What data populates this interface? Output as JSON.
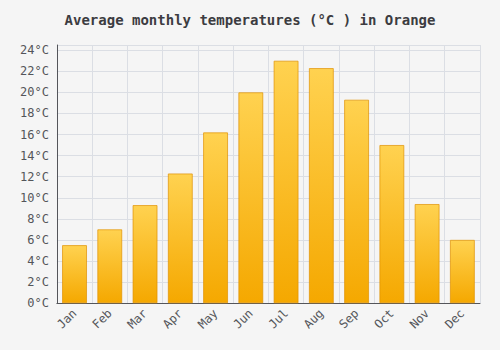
{
  "chart_data": {
    "type": "bar",
    "title": "Average monthly temperatures (°C ) in Orange",
    "categories": [
      "Jan",
      "Feb",
      "Mar",
      "Apr",
      "May",
      "Jun",
      "Jul",
      "Aug",
      "Sep",
      "Oct",
      "Nov",
      "Dec"
    ],
    "values": [
      5.5,
      7.0,
      9.3,
      12.3,
      16.2,
      20.0,
      23.0,
      22.3,
      19.3,
      15.0,
      9.4,
      6.0
    ],
    "color": "#F5A800",
    "ylim": [
      0,
      24.5
    ],
    "yticks": [
      {
        "value": 0,
        "label": "0°C"
      },
      {
        "value": 2,
        "label": "2°C"
      },
      {
        "value": 4,
        "label": "4°C"
      },
      {
        "value": 6,
        "label": "6°C"
      },
      {
        "value": 8,
        "label": "8°C"
      },
      {
        "value": 10,
        "label": "10°C"
      },
      {
        "value": 12,
        "label": "12°C"
      },
      {
        "value": 14,
        "label": "14°C"
      },
      {
        "value": 16,
        "label": "16°C"
      },
      {
        "value": 18,
        "label": "18°C"
      },
      {
        "value": 20,
        "label": "20°C"
      },
      {
        "value": 22,
        "label": "22°C"
      },
      {
        "value": 24,
        "label": "24°C"
      }
    ],
    "grid": true
  }
}
